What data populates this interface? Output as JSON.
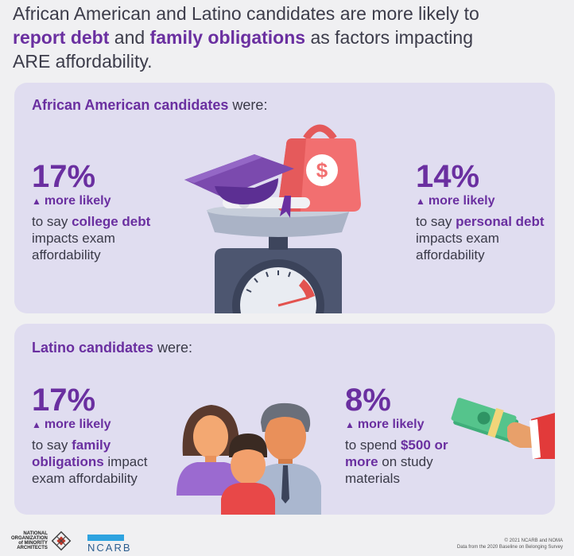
{
  "headline": {
    "part1": "African American and Latino candidates are more likely to",
    "hl1": "report debt",
    "and": " and ",
    "hl2": "family obligations",
    "part2": " as factors impacting",
    "part3": "ARE affordability."
  },
  "african_american": {
    "heading_bold": "African American candidates",
    "heading_rest": " were:",
    "stat_left": {
      "pct": "17%",
      "more_likely": "more likely",
      "pre": "to say ",
      "bold": "college debt",
      "post": " impacts exam affordability"
    },
    "stat_right": {
      "pct": "14%",
      "more_likely": "more likely",
      "pre": "to say ",
      "bold": "personal debt",
      "post": " impacts exam affordability"
    }
  },
  "latino": {
    "heading_bold": "Latino candidates",
    "heading_rest": " were:",
    "stat_left": {
      "pct": "17%",
      "more_likely": "more likely",
      "pre": "to say ",
      "bold": "family obligations",
      "post": " impact exam affordability"
    },
    "stat_right": {
      "pct": "8%",
      "more_likely": "more likely",
      "pre": "to spend ",
      "bold": "$500 or more",
      "post": " on study materials"
    }
  },
  "icons": {
    "triangle": "▲",
    "dollar": "$"
  },
  "footer": {
    "noma_lines": [
      "NATIONAL",
      "ORGANIZATION",
      "of MINORITY",
      "ARCHITECTS"
    ],
    "ncarb": "NCARB",
    "copyright": "© 2021 NCARB and NOMA",
    "source": "Data from the 2020 Baseline on Belonging Survey"
  },
  "colors": {
    "purple": "#6a2fa0",
    "panel": "#e0ddf0",
    "text": "#3a3a48"
  }
}
